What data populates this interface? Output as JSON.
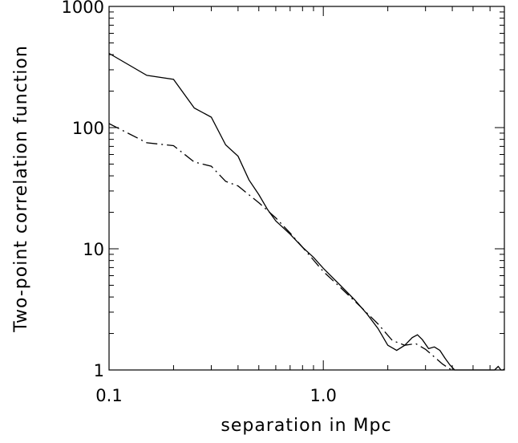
{
  "chart_data": {
    "type": "line",
    "title": "",
    "xlabel": "separation in Mpc",
    "ylabel": "Two-point correlation function",
    "xscale": "log",
    "yscale": "log",
    "xlim": [
      0.1,
      7.0
    ],
    "ylim": [
      1,
      1000
    ],
    "x_tick_labels": [
      {
        "value": 0.1,
        "label": "0.1"
      },
      {
        "value": 1.0,
        "label": "1.0"
      }
    ],
    "y_tick_labels": [
      {
        "value": 1,
        "label": "1"
      },
      {
        "value": 10,
        "label": "10"
      },
      {
        "value": 100,
        "label": "100"
      },
      {
        "value": 1000,
        "label": "1000"
      }
    ],
    "grid": false,
    "legend": "none",
    "series": [
      {
        "style": "solid",
        "color": "#000000",
        "points": [
          [
            0.1,
            410
          ],
          [
            0.15,
            270
          ],
          [
            0.2,
            250
          ],
          [
            0.25,
            145
          ],
          [
            0.3,
            122
          ],
          [
            0.35,
            72
          ],
          [
            0.4,
            58
          ],
          [
            0.45,
            37
          ],
          [
            0.5,
            28
          ],
          [
            0.55,
            21
          ],
          [
            0.6,
            17
          ],
          [
            0.7,
            13.2
          ],
          [
            0.8,
            10.3
          ],
          [
            0.9,
            8.5
          ],
          [
            1.0,
            6.9
          ],
          [
            1.2,
            5.0
          ],
          [
            1.4,
            3.8
          ],
          [
            1.6,
            2.9
          ],
          [
            1.8,
            2.2
          ],
          [
            2.0,
            1.6
          ],
          [
            2.2,
            1.45
          ],
          [
            2.4,
            1.6
          ],
          [
            2.6,
            1.85
          ],
          [
            2.75,
            1.95
          ],
          [
            2.9,
            1.78
          ],
          [
            3.1,
            1.5
          ],
          [
            3.3,
            1.55
          ],
          [
            3.5,
            1.45
          ],
          [
            3.7,
            1.25
          ],
          [
            3.9,
            1.1
          ],
          [
            4.1,
            1.0
          ],
          [
            6.3,
            1.0
          ],
          [
            6.55,
            1.07
          ],
          [
            6.75,
            1.0
          ],
          [
            6.9,
            1.0
          ],
          [
            7.0,
            1.02
          ]
        ]
      },
      {
        "style": "dash-dot",
        "color": "#000000",
        "points": [
          [
            0.1,
            108
          ],
          [
            0.15,
            75
          ],
          [
            0.2,
            71
          ],
          [
            0.25,
            52
          ],
          [
            0.3,
            48
          ],
          [
            0.35,
            36
          ],
          [
            0.4,
            33
          ],
          [
            0.5,
            24
          ],
          [
            0.6,
            18
          ],
          [
            0.7,
            13.5
          ],
          [
            0.8,
            10.3
          ],
          [
            1.0,
            6.5
          ],
          [
            1.2,
            4.8
          ],
          [
            1.5,
            3.3
          ],
          [
            1.8,
            2.4
          ],
          [
            2.1,
            1.75
          ],
          [
            2.4,
            1.6
          ],
          [
            2.7,
            1.65
          ],
          [
            3.0,
            1.48
          ],
          [
            3.3,
            1.28
          ],
          [
            3.6,
            1.12
          ],
          [
            3.9,
            1.02
          ],
          [
            4.1,
            1.0
          ]
        ]
      }
    ]
  }
}
